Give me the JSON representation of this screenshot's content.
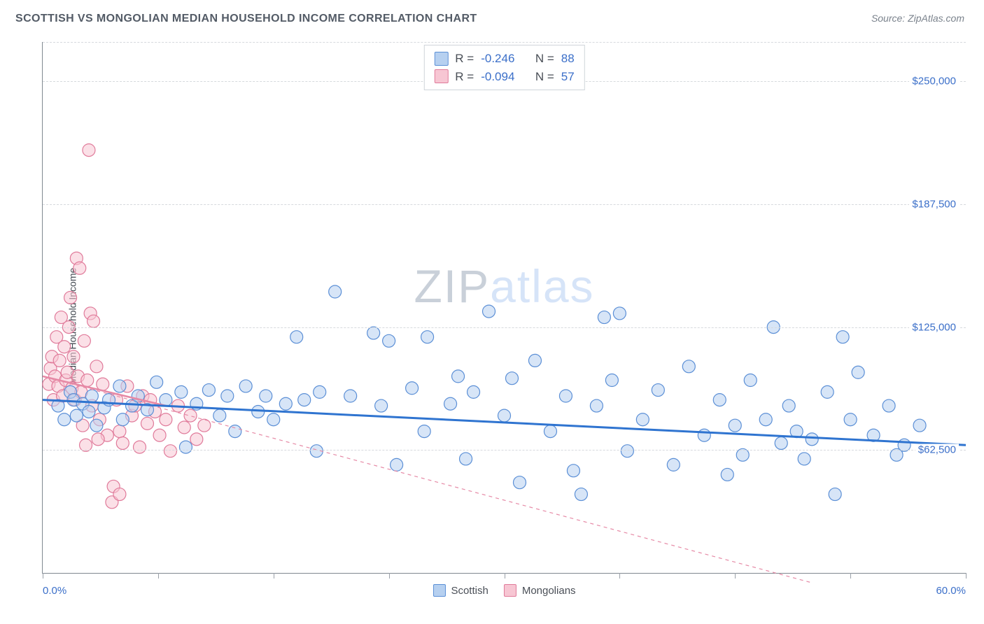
{
  "header": {
    "title": "SCOTTISH VS MONGOLIAN MEDIAN HOUSEHOLD INCOME CORRELATION CHART",
    "source": "Source: ZipAtlas.com"
  },
  "watermark": {
    "bold": "ZIP",
    "light": "atlas"
  },
  "chart": {
    "type": "scatter",
    "y_axis_label": "Median Household Income",
    "xlim": [
      0,
      60
    ],
    "ylim": [
      0,
      270000
    ],
    "x_ticks": [
      0,
      7.5,
      15,
      22.5,
      30,
      37.5,
      45,
      52.5,
      60
    ],
    "x_tick_labels_shown": {
      "min": "0.0%",
      "max": "60.0%"
    },
    "y_gridlines": [
      62500,
      125000,
      187500,
      250000
    ],
    "y_tick_labels": [
      "$62,500",
      "$125,000",
      "$187,500",
      "$250,000"
    ],
    "background_color": "#ffffff",
    "grid_color": "#d6d9dd",
    "axis_color": "#808890",
    "label_color": "#3b6fc9",
    "y_axis_title_color": "#444a52",
    "series": [
      {
        "name": "Scottish",
        "fill": "#b6d0f0",
        "stroke": "#5b8fd6",
        "fill_opacity": 0.55,
        "stroke_width": 1.2,
        "radius": 9,
        "trend": {
          "x1": 0,
          "y1": 88000,
          "x2": 60,
          "y2": 65000,
          "color": "#2f74d0",
          "width": 3,
          "dash": "none"
        },
        "stats": {
          "R": "-0.246",
          "N": "88"
        },
        "points": [
          [
            1.0,
            85000
          ],
          [
            1.4,
            78000
          ],
          [
            1.8,
            92000
          ],
          [
            2.0,
            88000
          ],
          [
            2.2,
            80000
          ],
          [
            2.6,
            86000
          ],
          [
            3.0,
            82000
          ],
          [
            3.2,
            90000
          ],
          [
            3.5,
            75000
          ],
          [
            4.0,
            84000
          ],
          [
            4.3,
            88000
          ],
          [
            5.0,
            95000
          ],
          [
            5.2,
            78000
          ],
          [
            5.8,
            85000
          ],
          [
            6.2,
            90000
          ],
          [
            6.8,
            83000
          ],
          [
            7.4,
            97000
          ],
          [
            8.0,
            88000
          ],
          [
            9.0,
            92000
          ],
          [
            9.3,
            64000
          ],
          [
            10.0,
            86000
          ],
          [
            10.8,
            93000
          ],
          [
            11.5,
            80000
          ],
          [
            12.0,
            90000
          ],
          [
            12.5,
            72000
          ],
          [
            13.2,
            95000
          ],
          [
            14.0,
            82000
          ],
          [
            14.5,
            90000
          ],
          [
            15.0,
            78000
          ],
          [
            15.8,
            86000
          ],
          [
            16.5,
            120000
          ],
          [
            17.0,
            88000
          ],
          [
            17.8,
            62000
          ],
          [
            18.0,
            92000
          ],
          [
            19.0,
            143000
          ],
          [
            20.0,
            90000
          ],
          [
            21.5,
            122000
          ],
          [
            22.0,
            85000
          ],
          [
            22.5,
            118000
          ],
          [
            23.0,
            55000
          ],
          [
            24.0,
            94000
          ],
          [
            24.8,
            72000
          ],
          [
            25.0,
            120000
          ],
          [
            26.5,
            86000
          ],
          [
            27.0,
            100000
          ],
          [
            27.5,
            58000
          ],
          [
            28.0,
            92000
          ],
          [
            29.0,
            133000
          ],
          [
            30.0,
            80000
          ],
          [
            30.5,
            99000
          ],
          [
            31.0,
            46000
          ],
          [
            32.0,
            108000
          ],
          [
            33.0,
            72000
          ],
          [
            34.0,
            90000
          ],
          [
            34.5,
            52000
          ],
          [
            35.0,
            40000
          ],
          [
            36.0,
            85000
          ],
          [
            36.5,
            130000
          ],
          [
            37.0,
            98000
          ],
          [
            37.5,
            132000
          ],
          [
            38.0,
            62000
          ],
          [
            39.0,
            78000
          ],
          [
            40.0,
            93000
          ],
          [
            41.0,
            55000
          ],
          [
            42.0,
            105000
          ],
          [
            43.0,
            70000
          ],
          [
            44.0,
            88000
          ],
          [
            44.5,
            50000
          ],
          [
            45.0,
            75000
          ],
          [
            45.5,
            60000
          ],
          [
            46.0,
            98000
          ],
          [
            47.0,
            78000
          ],
          [
            47.5,
            125000
          ],
          [
            48.0,
            66000
          ],
          [
            48.5,
            85000
          ],
          [
            49.0,
            72000
          ],
          [
            49.5,
            58000
          ],
          [
            50.0,
            68000
          ],
          [
            51.0,
            92000
          ],
          [
            51.5,
            40000
          ],
          [
            52.0,
            120000
          ],
          [
            52.5,
            78000
          ],
          [
            53.0,
            102000
          ],
          [
            54.0,
            70000
          ],
          [
            55.0,
            85000
          ],
          [
            55.5,
            60000
          ],
          [
            56.0,
            65000
          ],
          [
            57.0,
            75000
          ]
        ]
      },
      {
        "name": "Mongolians",
        "fill": "#f7c6d3",
        "stroke": "#e07a9a",
        "fill_opacity": 0.55,
        "stroke_width": 1.2,
        "radius": 9,
        "trend": {
          "x1": 0,
          "y1": 100000,
          "x2": 50,
          "y2": -5000,
          "color": "#e68aa6",
          "width": 1.2,
          "dash": "5,5"
        },
        "trend_solid": {
          "x1": 0,
          "y1": 100000,
          "x2": 8,
          "y2": 85000,
          "color": "#e68aa6",
          "width": 2.6,
          "dash": "none"
        },
        "stats": {
          "R": "-0.094",
          "N": "57"
        },
        "points": [
          [
            0.4,
            96000
          ],
          [
            0.5,
            104000
          ],
          [
            0.6,
            110000
          ],
          [
            0.7,
            88000
          ],
          [
            0.8,
            100000
          ],
          [
            0.9,
            120000
          ],
          [
            1.0,
            95000
          ],
          [
            1.1,
            108000
          ],
          [
            1.2,
            130000
          ],
          [
            1.3,
            90000
          ],
          [
            1.4,
            115000
          ],
          [
            1.5,
            98000
          ],
          [
            1.6,
            102000
          ],
          [
            1.7,
            125000
          ],
          [
            1.8,
            140000
          ],
          [
            1.9,
            94000
          ],
          [
            2.0,
            110000
          ],
          [
            2.1,
            88000
          ],
          [
            2.2,
            160000
          ],
          [
            2.3,
            100000
          ],
          [
            2.4,
            155000
          ],
          [
            2.5,
            92000
          ],
          [
            2.6,
            75000
          ],
          [
            2.7,
            118000
          ],
          [
            2.8,
            65000
          ],
          [
            2.9,
            98000
          ],
          [
            3.0,
            215000
          ],
          [
            3.1,
            132000
          ],
          [
            3.2,
            85000
          ],
          [
            3.3,
            128000
          ],
          [
            3.5,
            105000
          ],
          [
            3.7,
            78000
          ],
          [
            3.9,
            96000
          ],
          [
            4.2,
            70000
          ],
          [
            4.5,
            36000
          ],
          [
            4.6,
            44000
          ],
          [
            4.8,
            88000
          ],
          [
            5.0,
            72000
          ],
          [
            5.2,
            66000
          ],
          [
            5.5,
            95000
          ],
          [
            5.8,
            80000
          ],
          [
            6.0,
            85000
          ],
          [
            6.3,
            64000
          ],
          [
            6.5,
            90000
          ],
          [
            6.8,
            76000
          ],
          [
            7.0,
            88000
          ],
          [
            7.3,
            82000
          ],
          [
            7.6,
            70000
          ],
          [
            8.0,
            78000
          ],
          [
            8.3,
            62000
          ],
          [
            8.8,
            85000
          ],
          [
            9.2,
            74000
          ],
          [
            9.6,
            80000
          ],
          [
            10.0,
            68000
          ],
          [
            10.5,
            75000
          ],
          [
            5.0,
            40000
          ],
          [
            3.6,
            68000
          ]
        ]
      }
    ],
    "legend_bottom": [
      {
        "label": "Scottish",
        "swatch": "sw-blue"
      },
      {
        "label": "Mongolians",
        "swatch": "sw-pink"
      }
    ],
    "legend_top_labels": {
      "R": "R =",
      "N": "N ="
    }
  }
}
